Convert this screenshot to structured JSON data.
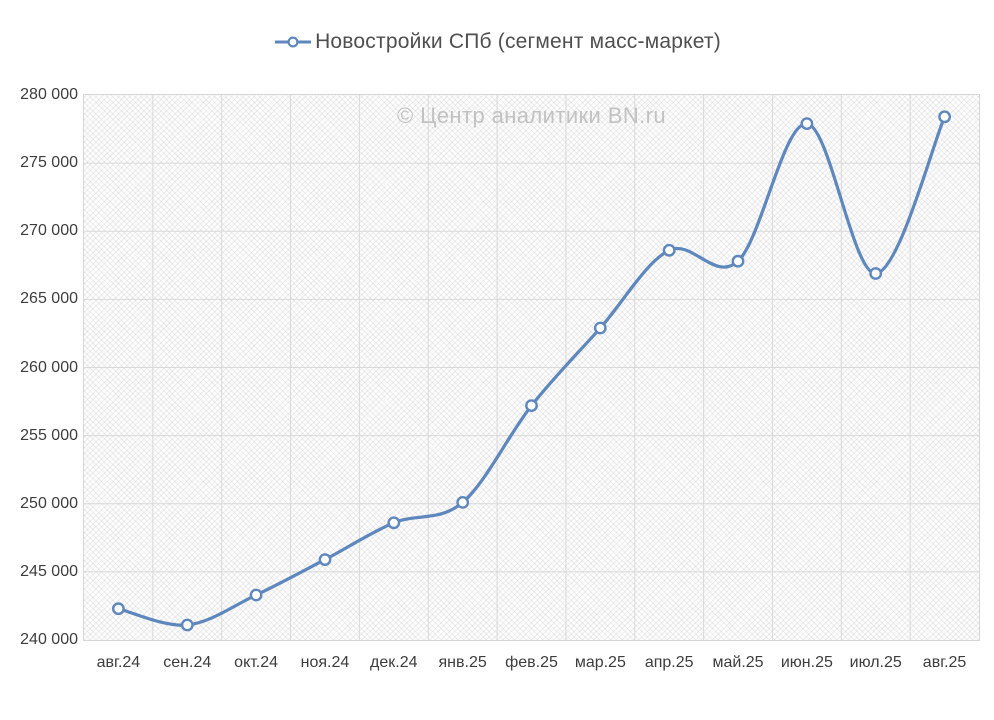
{
  "watermark": {
    "text": "© Центр аналитики BN.ru"
  },
  "colors": {
    "line": "#5e87bd",
    "marker_fill": "#ffffff",
    "grid": "#d9d9d9",
    "plot_border": "#d6d6d6",
    "axis_text": "#3d3d3d",
    "title_text": "#4f4f4f",
    "watermark_text": "#c2c2c2",
    "background": "#ffffff"
  },
  "chart_data": {
    "type": "line",
    "title": "Новостройки СПб (сегмент масс-маркет)",
    "xlabel": "",
    "ylabel": "",
    "categories": [
      "авг.24",
      "сен.24",
      "окт.24",
      "ноя.24",
      "дек.24",
      "янв.25",
      "фев.25",
      "мар.25",
      "апр.25",
      "май.25",
      "июн.25",
      "июл.25",
      "авг.25"
    ],
    "series": [
      {
        "name": "Новостройки СПб (сегмент масс-маркет)",
        "values": [
          242300,
          241100,
          243300,
          245900,
          248600,
          250100,
          257200,
          262900,
          268600,
          267800,
          277900,
          266900,
          278400
        ],
        "color": "#5e87bd",
        "marker": "open-circle",
        "smooth": true
      }
    ],
    "ylim": [
      240000,
      280000
    ],
    "ytick_step": 5000,
    "ytick_labels": [
      "240 000",
      "245 000",
      "250 000",
      "255 000",
      "260 000",
      "265 000",
      "270 000",
      "275 000",
      "280 000"
    ],
    "grid": true,
    "legend_position": "top"
  }
}
